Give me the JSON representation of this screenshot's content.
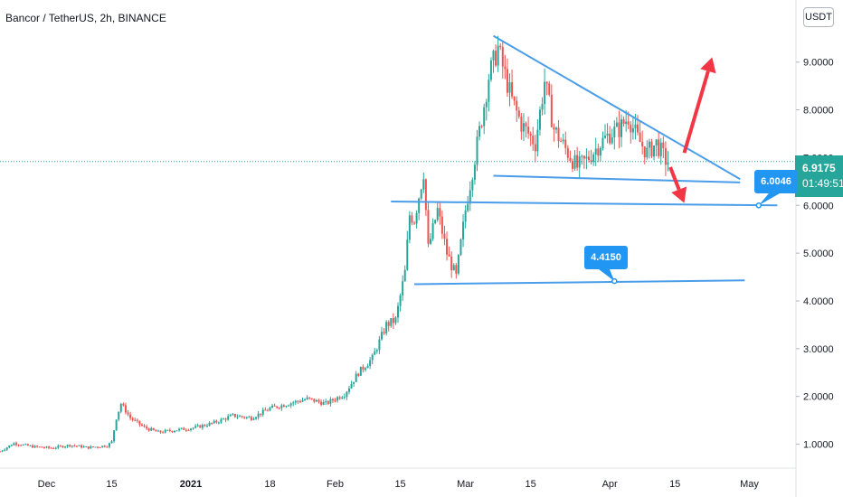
{
  "chart_data": {
    "type": "candlestick",
    "title": "Bancor / TetherUS, 2h, BINANCE",
    "currency": "USDT",
    "last_price": "6.9175",
    "countdown": "01:49:51",
    "y_ticks": [
      "1.0000",
      "2.0000",
      "3.0000",
      "4.0000",
      "5.0000",
      "6.0000",
      "7.0000",
      "8.0000",
      "9.0000"
    ],
    "y_tick_values": [
      1,
      2,
      3,
      4,
      5,
      6,
      7,
      8,
      9
    ],
    "x_ticks": [
      "Dec",
      "15",
      "2021",
      "18",
      "Feb",
      "15",
      "Mar",
      "15",
      "Apr",
      "15",
      "May"
    ],
    "x_tick_dates": [
      "2020-12-01",
      "2020-12-15",
      "2021-01-01",
      "2021-01-18",
      "2021-02-01",
      "2021-02-15",
      "2021-03-01",
      "2021-03-15",
      "2021-04-01",
      "2021-04-15",
      "2021-05-01"
    ],
    "ylim": [
      0.5,
      10.3
    ],
    "xlim": [
      "2020-11-21",
      "2021-05-11"
    ],
    "price_path": [
      [
        "2020-11-21",
        0.85
      ],
      [
        "2020-11-24",
        1.02
      ],
      [
        "2020-11-28",
        0.95
      ],
      [
        "2020-12-02",
        0.92
      ],
      [
        "2020-12-06",
        0.98
      ],
      [
        "2020-12-10",
        0.93
      ],
      [
        "2020-12-14",
        0.97
      ],
      [
        "2020-12-15",
        1.05
      ],
      [
        "2020-12-16",
        1.55
      ],
      [
        "2020-12-17",
        1.85
      ],
      [
        "2020-12-19",
        1.55
      ],
      [
        "2020-12-22",
        1.35
      ],
      [
        "2020-12-25",
        1.25
      ],
      [
        "2020-12-29",
        1.3
      ],
      [
        "2021-01-02",
        1.35
      ],
      [
        "2021-01-06",
        1.45
      ],
      [
        "2021-01-10",
        1.6
      ],
      [
        "2021-01-14",
        1.55
      ],
      [
        "2021-01-18",
        1.75
      ],
      [
        "2021-01-22",
        1.85
      ],
      [
        "2021-01-26",
        1.95
      ],
      [
        "2021-01-30",
        1.85
      ],
      [
        "2021-02-03",
        2.05
      ],
      [
        "2021-02-06",
        2.5
      ],
      [
        "2021-02-09",
        2.8
      ],
      [
        "2021-02-12",
        3.5
      ],
      [
        "2021-02-14",
        3.6
      ],
      [
        "2021-02-16",
        4.6
      ],
      [
        "2021-02-17",
        5.8
      ],
      [
        "2021-02-18",
        5.7
      ],
      [
        "2021-02-20",
        6.7
      ],
      [
        "2021-02-21",
        5.1
      ],
      [
        "2021-02-23",
        5.9
      ],
      [
        "2021-02-25",
        5.0
      ],
      [
        "2021-02-27",
        4.5
      ],
      [
        "2021-02-28",
        5.2
      ],
      [
        "2021-03-01",
        5.9
      ],
      [
        "2021-03-03",
        7.0
      ],
      [
        "2021-03-05",
        8.1
      ],
      [
        "2021-03-06",
        8.7
      ],
      [
        "2021-03-08",
        9.3
      ],
      [
        "2021-03-09",
        8.9
      ],
      [
        "2021-03-11",
        8.2
      ],
      [
        "2021-03-13",
        7.7
      ],
      [
        "2021-03-16",
        7.3
      ],
      [
        "2021-03-18",
        8.6
      ],
      [
        "2021-03-20",
        7.6
      ],
      [
        "2021-03-23",
        7.1
      ],
      [
        "2021-03-25",
        6.8
      ],
      [
        "2021-03-27",
        6.95
      ],
      [
        "2021-03-30",
        7.3
      ],
      [
        "2021-04-01",
        7.5
      ],
      [
        "2021-04-03",
        7.6
      ],
      [
        "2021-04-05",
        7.85
      ],
      [
        "2021-04-07",
        7.4
      ],
      [
        "2021-04-09",
        7.1
      ],
      [
        "2021-04-11",
        7.3
      ],
      [
        "2021-04-13",
        6.95
      ],
      [
        "2021-04-14",
        6.9175
      ]
    ],
    "annotations": {
      "callouts": [
        "6.0046",
        "4.4150"
      ],
      "lines": [
        {
          "from": [
            "2021-03-07",
            9.55
          ],
          "to": [
            "2021-04-29",
            6.55
          ]
        },
        {
          "from": [
            "2021-03-07",
            6.62
          ],
          "to": [
            "2021-04-29",
            6.48
          ]
        },
        {
          "from": [
            "2021-02-13",
            6.08
          ],
          "to": [
            "2021-05-07",
            6.0
          ]
        },
        {
          "from": [
            "2021-02-18",
            4.35
          ],
          "to": [
            "2021-04-30",
            4.43
          ]
        }
      ],
      "arrows": [
        {
          "from": [
            "2021-04-17",
            7.1
          ],
          "to": [
            "2021-04-23",
            9.1
          ],
          "color": "#f23645"
        },
        {
          "from": [
            "2021-04-14",
            6.8
          ],
          "to": [
            "2021-04-17",
            6.05
          ],
          "color": "#f23645"
        }
      ]
    },
    "colors": {
      "up": "#26a69a",
      "down": "#ef5350",
      "lines": "#4a9de8",
      "callout": "#2196f3",
      "price_line": "#26a69a",
      "arrow": "#f23645"
    }
  }
}
